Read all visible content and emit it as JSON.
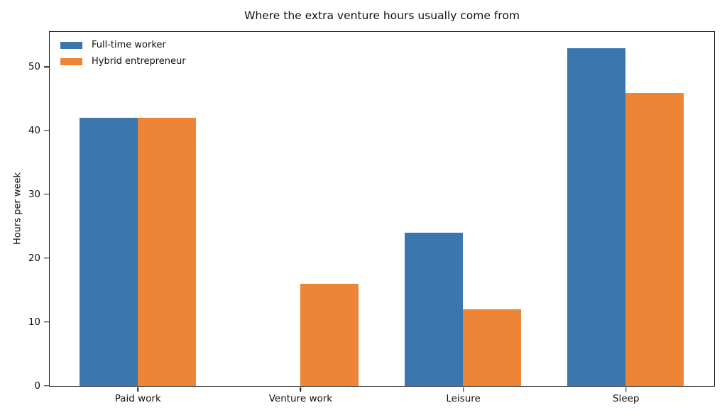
{
  "chart_data": {
    "type": "bar",
    "title": "Where the extra venture hours usually come from",
    "xlabel": "",
    "ylabel": "Hours per week",
    "categories": [
      "Paid work",
      "Venture work",
      "Leisure",
      "Sleep"
    ],
    "series": [
      {
        "name": "Full-time worker",
        "color": "#3b76af",
        "values": [
          42,
          0,
          24,
          53
        ]
      },
      {
        "name": "Hybrid entrepreneur",
        "color": "#ee8435",
        "values": [
          42,
          16,
          12,
          46
        ]
      }
    ],
    "ylim": [
      0,
      55.4
    ],
    "xlim": [
      -0.54,
      3.54
    ],
    "yticks": [
      0,
      10,
      20,
      30,
      40,
      50
    ],
    "grid": false,
    "legend_position": "upper-left",
    "background_color": "#ffffff",
    "spine_color": "#1b1b1b"
  }
}
